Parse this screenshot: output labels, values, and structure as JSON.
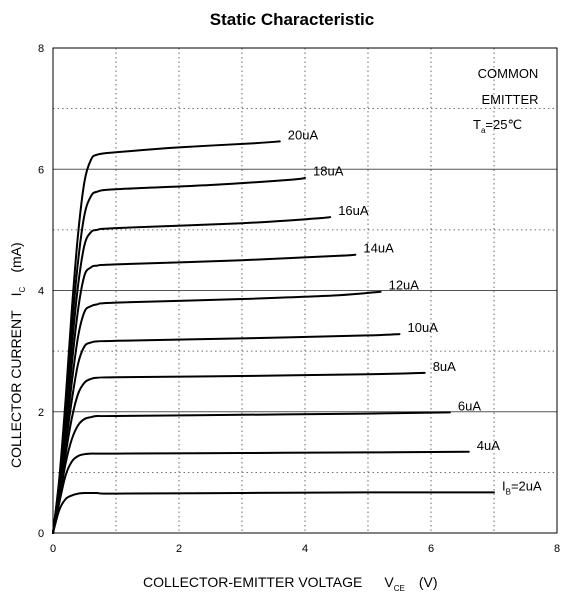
{
  "chart_data": {
    "type": "line",
    "title": "Static Characteristic",
    "xlabel": "COLLECTOR-EMITTER VOLTAGE",
    "xlabel_symbol": "V",
    "xlabel_subscript": "CE",
    "xlabel_unit": "(V)",
    "ylabel": "COLLECTOR CURRENT",
    "ylabel_symbol": "I",
    "ylabel_subscript": "C",
    "ylabel_unit": "(mA)",
    "xlim": [
      0,
      8
    ],
    "ylim": [
      0,
      8
    ],
    "xticks": [
      "0",
      "2",
      "4",
      "6",
      "8"
    ],
    "yticks": [
      "0",
      "2",
      "4",
      "6",
      "8"
    ],
    "grid": "dotted",
    "annotation": {
      "line1": "COMMON",
      "line2": "EMITTER",
      "temp_symbol": "T",
      "temp_sub": "a",
      "temp_value": "=25℃"
    },
    "series": [
      {
        "name": "2uA",
        "label_prefix": "I",
        "label_sub": "B",
        "label_text": "=2uA",
        "x": [
          0,
          0.1,
          0.2,
          0.3,
          0.4,
          0.5,
          0.6,
          0.7,
          1.0,
          3.0,
          5.0,
          7.0
        ],
        "y": [
          0,
          0.38,
          0.56,
          0.62,
          0.65,
          0.66,
          0.66,
          0.66,
          0.65,
          0.66,
          0.67,
          0.67
        ]
      },
      {
        "name": "4uA",
        "label_text": "4uA",
        "x": [
          0,
          0.1,
          0.2,
          0.3,
          0.4,
          0.5,
          0.6,
          0.7,
          1.0,
          3.0,
          5.0,
          6.6
        ],
        "y": [
          0,
          0.5,
          0.95,
          1.18,
          1.27,
          1.3,
          1.31,
          1.31,
          1.31,
          1.32,
          1.33,
          1.34
        ]
      },
      {
        "name": "6uA",
        "label_text": "6uA",
        "x": [
          0,
          0.1,
          0.2,
          0.3,
          0.4,
          0.5,
          0.6,
          0.7,
          1.0,
          3.0,
          5.0,
          6.3
        ],
        "y": [
          0,
          0.55,
          1.15,
          1.55,
          1.78,
          1.88,
          1.91,
          1.93,
          1.93,
          1.95,
          1.97,
          1.99
        ]
      },
      {
        "name": "8uA",
        "label_text": "8uA",
        "x": [
          0,
          0.1,
          0.2,
          0.3,
          0.4,
          0.5,
          0.6,
          0.7,
          1.0,
          3.0,
          5.0,
          5.9
        ],
        "y": [
          0,
          0.6,
          1.3,
          1.9,
          2.3,
          2.48,
          2.54,
          2.56,
          2.57,
          2.59,
          2.62,
          2.64
        ]
      },
      {
        "name": "10uA",
        "label_text": "10uA",
        "x": [
          0,
          0.1,
          0.2,
          0.3,
          0.4,
          0.5,
          0.6,
          0.7,
          1.0,
          3.0,
          5.0,
          5.5
        ],
        "y": [
          0,
          0.65,
          1.45,
          2.2,
          2.8,
          3.08,
          3.14,
          3.16,
          3.17,
          3.21,
          3.26,
          3.28
        ]
      },
      {
        "name": "12uA",
        "label_text": "12uA",
        "x": [
          0,
          0.1,
          0.2,
          0.3,
          0.4,
          0.5,
          0.6,
          0.7,
          1.0,
          3.0,
          4.5,
          5.2
        ],
        "y": [
          0,
          0.7,
          1.6,
          2.5,
          3.25,
          3.65,
          3.74,
          3.77,
          3.8,
          3.86,
          3.92,
          3.98
        ]
      },
      {
        "name": "14uA",
        "label_text": "14uA",
        "x": [
          0,
          0.1,
          0.2,
          0.3,
          0.4,
          0.5,
          0.6,
          0.7,
          1.0,
          3.0,
          4.5,
          4.8
        ],
        "y": [
          0,
          0.75,
          1.75,
          2.8,
          3.7,
          4.25,
          4.38,
          4.41,
          4.43,
          4.5,
          4.57,
          4.59
        ]
      },
      {
        "name": "16uA",
        "label_text": "16uA",
        "x": [
          0,
          0.1,
          0.2,
          0.3,
          0.4,
          0.5,
          0.6,
          0.7,
          1.0,
          3.0,
          4.2,
          4.4
        ],
        "y": [
          0,
          0.8,
          1.9,
          3.1,
          4.1,
          4.75,
          4.96,
          5.0,
          5.03,
          5.11,
          5.19,
          5.21
        ]
      },
      {
        "name": "18uA",
        "label_text": "18uA",
        "x": [
          0,
          0.1,
          0.2,
          0.3,
          0.4,
          0.5,
          0.6,
          0.7,
          1.0,
          2.5,
          3.8,
          4.0
        ],
        "y": [
          0,
          0.85,
          2.05,
          3.4,
          4.5,
          5.25,
          5.55,
          5.63,
          5.67,
          5.74,
          5.83,
          5.86
        ]
      },
      {
        "name": "20uA",
        "label_text": "20uA",
        "x": [
          0,
          0.1,
          0.2,
          0.3,
          0.4,
          0.5,
          0.6,
          0.7,
          1.0,
          2.0,
          3.2,
          3.6
        ],
        "y": [
          0,
          0.9,
          2.2,
          3.7,
          4.95,
          5.8,
          6.15,
          6.24,
          6.28,
          6.36,
          6.43,
          6.46
        ]
      }
    ]
  }
}
